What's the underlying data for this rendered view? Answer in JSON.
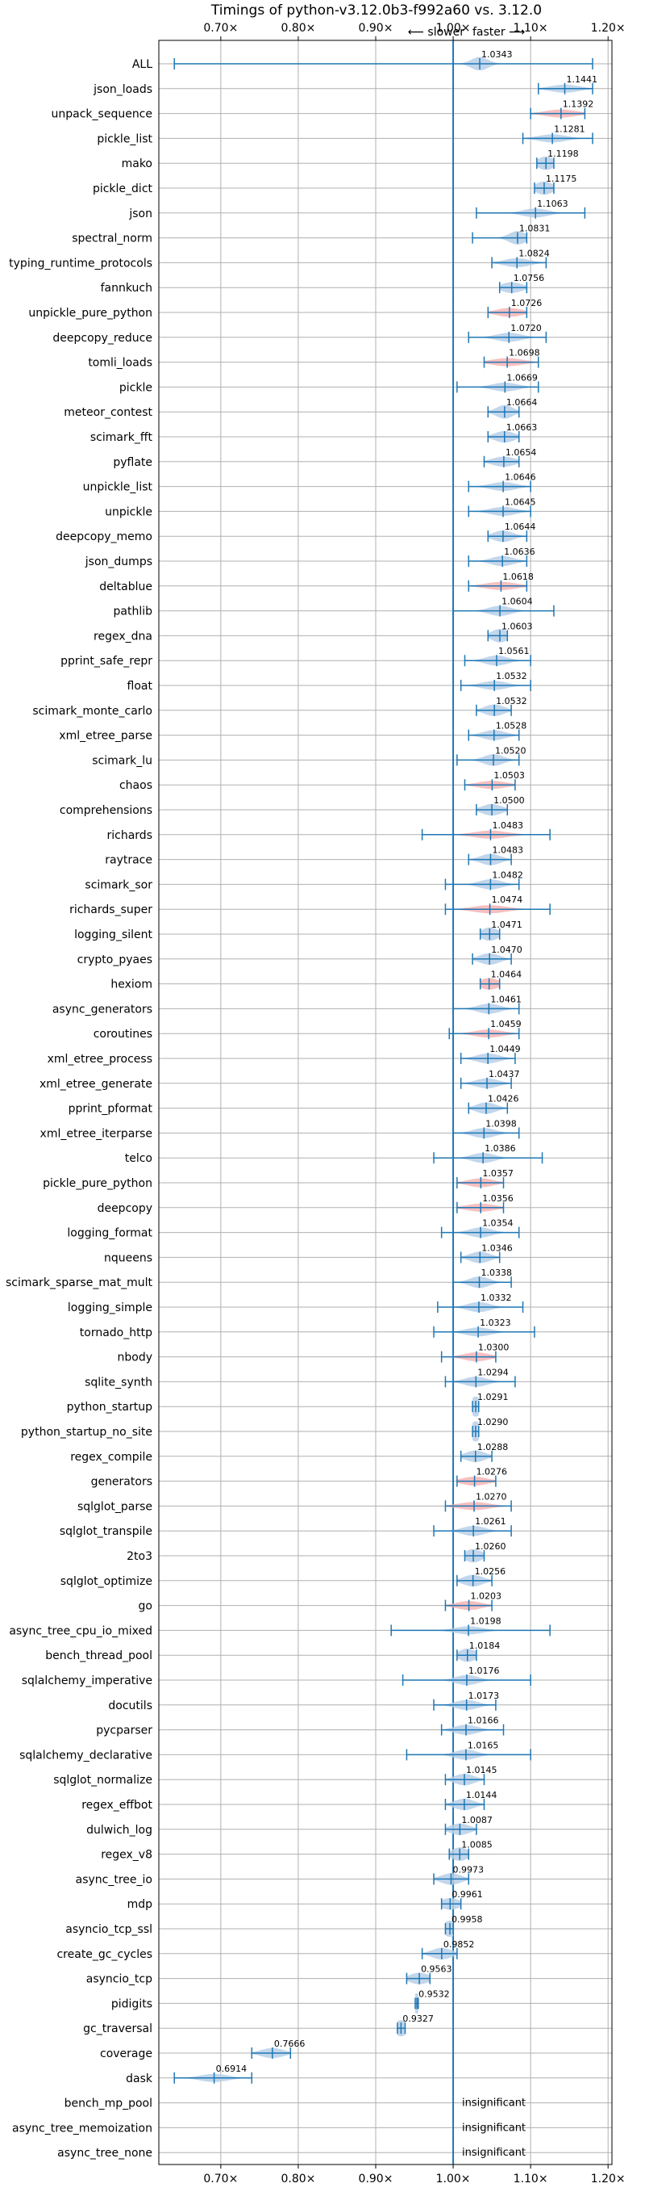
{
  "chart_data": {
    "type": "violin",
    "title": "Timings of python-v3.12.0b3-f992a60 vs. 3.12.0",
    "direction_slower": "⟵ slower",
    "direction_faster": "faster ⟶",
    "x_ticks": [
      {
        "value": 0.7,
        "label": "0.70×"
      },
      {
        "value": 0.8,
        "label": "0.80×"
      },
      {
        "value": 0.9,
        "label": "0.90×"
      },
      {
        "value": 1.0,
        "label": "1.00×"
      },
      {
        "value": 1.1,
        "label": "1.10×"
      },
      {
        "value": 1.2,
        "label": "1.20×"
      }
    ],
    "xlim": [
      0.62,
      1.205
    ],
    "reference_line": 1.0,
    "colors": {
      "default": "#b7cfe7",
      "highlight": "#f6b4b4",
      "line": "#1f77b4",
      "grid": "#b0b0b0"
    },
    "insignificant_label": "insignificant",
    "benchmarks": [
      {
        "name": "ALL",
        "value": 1.0343,
        "label": "1.0343",
        "min": 0.64,
        "max": 1.18,
        "width": 0.012
      },
      {
        "name": "json_loads",
        "value": 1.1441,
        "label": "1.1441",
        "min": 1.11,
        "max": 1.18,
        "width": 0.02
      },
      {
        "name": "unpack_sequence",
        "value": 1.1392,
        "label": "1.1392",
        "min": 1.1,
        "max": 1.17,
        "width": 0.022,
        "highlight": true
      },
      {
        "name": "pickle_list",
        "value": 1.1281,
        "label": "1.1281",
        "min": 1.09,
        "max": 1.18,
        "width": 0.02
      },
      {
        "name": "mako",
        "value": 1.1198,
        "label": "1.1198",
        "min": 1.108,
        "max": 1.13,
        "width": 0.012
      },
      {
        "name": "pickle_dict",
        "value": 1.1175,
        "label": "1.1175",
        "min": 1.105,
        "max": 1.13,
        "width": 0.012
      },
      {
        "name": "json",
        "value": 1.1063,
        "label": "1.1063",
        "min": 1.03,
        "max": 1.17,
        "width": 0.018
      },
      {
        "name": "spectral_norm",
        "value": 1.0831,
        "label": "1.0831",
        "min": 1.025,
        "max": 1.095,
        "width": 0.012
      },
      {
        "name": "typing_runtime_protocols",
        "value": 1.0824,
        "label": "1.0824",
        "min": 1.05,
        "max": 1.12,
        "width": 0.018
      },
      {
        "name": "fannkuch",
        "value": 1.0756,
        "label": "1.0756",
        "min": 1.06,
        "max": 1.095,
        "width": 0.015
      },
      {
        "name": "unpickle_pure_python",
        "value": 1.0726,
        "label": "1.0726",
        "min": 1.045,
        "max": 1.095,
        "width": 0.018,
        "highlight": true
      },
      {
        "name": "deepcopy_reduce",
        "value": 1.072,
        "label": "1.0720",
        "min": 1.02,
        "max": 1.12,
        "width": 0.018
      },
      {
        "name": "tomli_loads",
        "value": 1.0698,
        "label": "1.0698",
        "min": 1.04,
        "max": 1.11,
        "width": 0.022,
        "highlight": true
      },
      {
        "name": "pickle",
        "value": 1.0669,
        "label": "1.0669",
        "min": 1.005,
        "max": 1.11,
        "width": 0.018
      },
      {
        "name": "meteor_contest",
        "value": 1.0664,
        "label": "1.0664",
        "min": 1.045,
        "max": 1.085,
        "width": 0.012
      },
      {
        "name": "scimark_fft",
        "value": 1.0663,
        "label": "1.0663",
        "min": 1.045,
        "max": 1.085,
        "width": 0.014
      },
      {
        "name": "pyflate",
        "value": 1.0654,
        "label": "1.0654",
        "min": 1.04,
        "max": 1.085,
        "width": 0.016
      },
      {
        "name": "unpickle_list",
        "value": 1.0646,
        "label": "1.0646",
        "min": 1.02,
        "max": 1.1,
        "width": 0.018
      },
      {
        "name": "unpickle",
        "value": 1.0645,
        "label": "1.0645",
        "min": 1.02,
        "max": 1.1,
        "width": 0.018
      },
      {
        "name": "deepcopy_memo",
        "value": 1.0644,
        "label": "1.0644",
        "min": 1.045,
        "max": 1.095,
        "width": 0.014
      },
      {
        "name": "json_dumps",
        "value": 1.0636,
        "label": "1.0636",
        "min": 1.02,
        "max": 1.095,
        "width": 0.016
      },
      {
        "name": "deltablue",
        "value": 1.0618,
        "label": "1.0618",
        "min": 1.02,
        "max": 1.095,
        "width": 0.022,
        "highlight": true
      },
      {
        "name": "pathlib",
        "value": 1.0604,
        "label": "1.0604",
        "min": 1.0,
        "max": 1.13,
        "width": 0.016
      },
      {
        "name": "regex_dna",
        "value": 1.0603,
        "label": "1.0603",
        "min": 1.045,
        "max": 1.07,
        "width": 0.012
      },
      {
        "name": "pprint_safe_repr",
        "value": 1.0561,
        "label": "1.0561",
        "min": 1.015,
        "max": 1.1,
        "width": 0.016
      },
      {
        "name": "float",
        "value": 1.0532,
        "label": "1.0532",
        "min": 1.01,
        "max": 1.1,
        "width": 0.018
      },
      {
        "name": "scimark_monte_carlo",
        "value": 1.0532,
        "label": "1.0532",
        "min": 1.03,
        "max": 1.075,
        "width": 0.014
      },
      {
        "name": "xml_etree_parse",
        "value": 1.0528,
        "label": "1.0528",
        "min": 1.02,
        "max": 1.085,
        "width": 0.016
      },
      {
        "name": "scimark_lu",
        "value": 1.052,
        "label": "1.0520",
        "min": 1.005,
        "max": 1.085,
        "width": 0.014
      },
      {
        "name": "chaos",
        "value": 1.0503,
        "label": "1.0503",
        "min": 1.015,
        "max": 1.08,
        "width": 0.02,
        "highlight": true
      },
      {
        "name": "comprehensions",
        "value": 1.05,
        "label": "1.0500",
        "min": 1.03,
        "max": 1.07,
        "width": 0.014
      },
      {
        "name": "richards",
        "value": 1.0483,
        "label": "1.0483",
        "min": 0.96,
        "max": 1.125,
        "width": 0.024,
        "highlight": true
      },
      {
        "name": "raytrace",
        "value": 1.0483,
        "label": "1.0483",
        "min": 1.02,
        "max": 1.075,
        "width": 0.014
      },
      {
        "name": "scimark_sor",
        "value": 1.0482,
        "label": "1.0482",
        "min": 0.99,
        "max": 1.085,
        "width": 0.016
      },
      {
        "name": "richards_super",
        "value": 1.0474,
        "label": "1.0474",
        "min": 0.99,
        "max": 1.125,
        "width": 0.024,
        "highlight": true
      },
      {
        "name": "logging_silent",
        "value": 1.0471,
        "label": "1.0471",
        "min": 1.035,
        "max": 1.06,
        "width": 0.012
      },
      {
        "name": "crypto_pyaes",
        "value": 1.047,
        "label": "1.0470",
        "min": 1.025,
        "max": 1.075,
        "width": 0.014
      },
      {
        "name": "hexiom",
        "value": 1.0464,
        "label": "1.0464",
        "min": 1.035,
        "max": 1.06,
        "width": 0.014,
        "highlight": true
      },
      {
        "name": "async_generators",
        "value": 1.0461,
        "label": "1.0461",
        "min": 1.0,
        "max": 1.085,
        "width": 0.016
      },
      {
        "name": "coroutines",
        "value": 1.0459,
        "label": "1.0459",
        "min": 0.995,
        "max": 1.085,
        "width": 0.02,
        "highlight": true
      },
      {
        "name": "xml_etree_process",
        "value": 1.0449,
        "label": "1.0449",
        "min": 1.01,
        "max": 1.08,
        "width": 0.016
      },
      {
        "name": "xml_etree_generate",
        "value": 1.0437,
        "label": "1.0437",
        "min": 1.01,
        "max": 1.075,
        "width": 0.016
      },
      {
        "name": "pprint_pformat",
        "value": 1.0426,
        "label": "1.0426",
        "min": 1.02,
        "max": 1.07,
        "width": 0.014
      },
      {
        "name": "xml_etree_iterparse",
        "value": 1.0398,
        "label": "1.0398",
        "min": 1.0,
        "max": 1.085,
        "width": 0.016
      },
      {
        "name": "telco",
        "value": 1.0386,
        "label": "1.0386",
        "min": 0.975,
        "max": 1.115,
        "width": 0.016
      },
      {
        "name": "pickle_pure_python",
        "value": 1.0357,
        "label": "1.0357",
        "min": 1.005,
        "max": 1.065,
        "width": 0.018,
        "highlight": true
      },
      {
        "name": "deepcopy",
        "value": 1.0356,
        "label": "1.0356",
        "min": 1.005,
        "max": 1.065,
        "width": 0.02,
        "highlight": true
      },
      {
        "name": "logging_format",
        "value": 1.0354,
        "label": "1.0354",
        "min": 0.985,
        "max": 1.085,
        "width": 0.016
      },
      {
        "name": "nqueens",
        "value": 1.0346,
        "label": "1.0346",
        "min": 1.01,
        "max": 1.06,
        "width": 0.014
      },
      {
        "name": "scimark_sparse_mat_mult",
        "value": 1.0338,
        "label": "1.0338",
        "min": 1.0,
        "max": 1.075,
        "width": 0.014
      },
      {
        "name": "logging_simple",
        "value": 1.0332,
        "label": "1.0332",
        "min": 0.98,
        "max": 1.09,
        "width": 0.016
      },
      {
        "name": "tornado_http",
        "value": 1.0323,
        "label": "1.0323",
        "min": 0.975,
        "max": 1.105,
        "width": 0.018
      },
      {
        "name": "nbody",
        "value": 1.03,
        "label": "1.0300",
        "min": 0.985,
        "max": 1.055,
        "width": 0.018,
        "highlight": true
      },
      {
        "name": "sqlite_synth",
        "value": 1.0294,
        "label": "1.0294",
        "min": 0.99,
        "max": 1.08,
        "width": 0.016
      },
      {
        "name": "python_startup",
        "value": 1.0291,
        "label": "1.0291",
        "min": 1.025,
        "max": 1.033,
        "width": 0.008
      },
      {
        "name": "python_startup_no_site",
        "value": 1.029,
        "label": "1.0290",
        "min": 1.025,
        "max": 1.033,
        "width": 0.008
      },
      {
        "name": "regex_compile",
        "value": 1.0288,
        "label": "1.0288",
        "min": 1.01,
        "max": 1.05,
        "width": 0.014
      },
      {
        "name": "generators",
        "value": 1.0276,
        "label": "1.0276",
        "min": 1.005,
        "max": 1.055,
        "width": 0.018,
        "highlight": true
      },
      {
        "name": "sqlglot_parse",
        "value": 1.027,
        "label": "1.0270",
        "min": 0.99,
        "max": 1.075,
        "width": 0.022,
        "highlight": true
      },
      {
        "name": "sqlglot_transpile",
        "value": 1.0261,
        "label": "1.0261",
        "min": 0.975,
        "max": 1.075,
        "width": 0.016
      },
      {
        "name": "2to3",
        "value": 1.026,
        "label": "1.0260",
        "min": 1.015,
        "max": 1.04,
        "width": 0.012
      },
      {
        "name": "sqlglot_optimize",
        "value": 1.0256,
        "label": "1.0256",
        "min": 1.005,
        "max": 1.05,
        "width": 0.014
      },
      {
        "name": "go",
        "value": 1.0203,
        "label": "1.0203",
        "min": 0.99,
        "max": 1.05,
        "width": 0.018,
        "highlight": true
      },
      {
        "name": "async_tree_cpu_io_mixed",
        "value": 1.0198,
        "label": "1.0198",
        "min": 0.92,
        "max": 1.125,
        "width": 0.02
      },
      {
        "name": "bench_thread_pool",
        "value": 1.0184,
        "label": "1.0184",
        "min": 1.005,
        "max": 1.03,
        "width": 0.012
      },
      {
        "name": "sqlalchemy_imperative",
        "value": 1.0176,
        "label": "1.0176",
        "min": 0.935,
        "max": 1.1,
        "width": 0.016
      },
      {
        "name": "docutils",
        "value": 1.0173,
        "label": "1.0173",
        "min": 0.975,
        "max": 1.055,
        "width": 0.016
      },
      {
        "name": "pycparser",
        "value": 1.0166,
        "label": "1.0166",
        "min": 0.985,
        "max": 1.065,
        "width": 0.016
      },
      {
        "name": "sqlalchemy_declarative",
        "value": 1.0165,
        "label": "1.0165",
        "min": 0.94,
        "max": 1.1,
        "width": 0.016
      },
      {
        "name": "sqlglot_normalize",
        "value": 1.0145,
        "label": "1.0145",
        "min": 0.99,
        "max": 1.04,
        "width": 0.014
      },
      {
        "name": "regex_effbot",
        "value": 1.0144,
        "label": "1.0144",
        "min": 0.99,
        "max": 1.04,
        "width": 0.014
      },
      {
        "name": "dulwich_log",
        "value": 1.0087,
        "label": "1.0087",
        "min": 0.99,
        "max": 1.03,
        "width": 0.014
      },
      {
        "name": "regex_v8",
        "value": 1.0085,
        "label": "1.0085",
        "min": 0.995,
        "max": 1.02,
        "width": 0.012
      },
      {
        "name": "async_tree_io",
        "value": 0.9973,
        "label": "0.9973",
        "min": 0.975,
        "max": 1.02,
        "width": 0.014
      },
      {
        "name": "mdp",
        "value": 0.9961,
        "label": "0.9961",
        "min": 0.985,
        "max": 1.01,
        "width": 0.014
      },
      {
        "name": "asyncio_tcp_ssl",
        "value": 0.9958,
        "label": "0.9958",
        "min": 0.99,
        "max": 1.0,
        "width": 0.01
      },
      {
        "name": "create_gc_cycles",
        "value": 0.9852,
        "label": "0.9852",
        "min": 0.96,
        "max": 1.005,
        "width": 0.014
      },
      {
        "name": "asyncio_tcp",
        "value": 0.9563,
        "label": "0.9563",
        "min": 0.94,
        "max": 0.97,
        "width": 0.014
      },
      {
        "name": "pidigits",
        "value": 0.9532,
        "label": "0.9532",
        "min": 0.951,
        "max": 0.955,
        "width": 0.008
      },
      {
        "name": "gc_traversal",
        "value": 0.9327,
        "label": "0.9327",
        "min": 0.928,
        "max": 0.938,
        "width": 0.01
      },
      {
        "name": "coverage",
        "value": 0.7666,
        "label": "0.7666",
        "min": 0.74,
        "max": 0.79,
        "width": 0.016
      },
      {
        "name": "dask",
        "value": 0.6914,
        "label": "0.6914",
        "min": 0.64,
        "max": 0.74,
        "width": 0.02
      },
      {
        "name": "bench_mp_pool",
        "insignificant": true
      },
      {
        "name": "async_tree_memoization",
        "insignificant": true
      },
      {
        "name": "async_tree_none",
        "insignificant": true
      }
    ]
  }
}
